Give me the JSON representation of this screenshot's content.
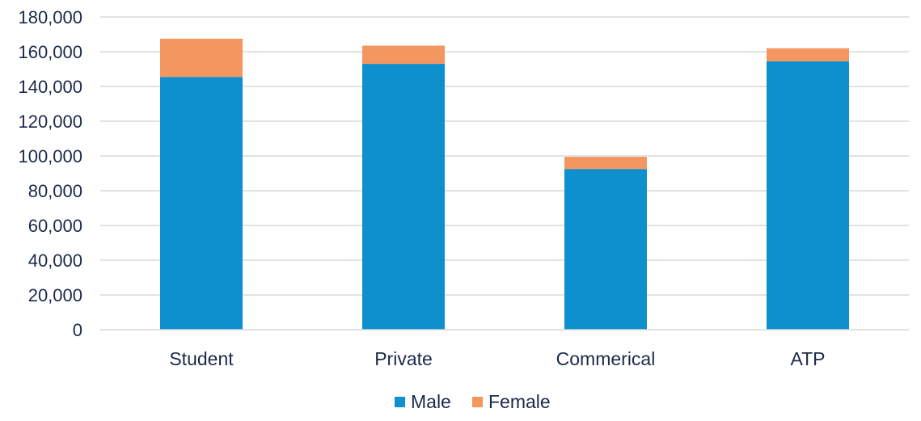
{
  "chart_data": {
    "type": "bar",
    "stacked": true,
    "categories": [
      "Student",
      "Private",
      "Commerical",
      "ATP"
    ],
    "series": [
      {
        "name": "Male",
        "color": "#0e8fce",
        "values": [
          145500,
          153000,
          92500,
          154500
        ]
      },
      {
        "name": "Female",
        "color": "#f4965f",
        "values": [
          22000,
          10500,
          7000,
          7500
        ]
      }
    ],
    "ylim": [
      0,
      180000
    ],
    "yticks": [
      0,
      20000,
      40000,
      60000,
      80000,
      100000,
      120000,
      140000,
      160000,
      180000
    ],
    "ytick_labels": [
      "0",
      "20,000",
      "40,000",
      "60,000",
      "80,000",
      "100,000",
      "120,000",
      "140,000",
      "160,000",
      "180,000"
    ],
    "grid": true,
    "legend_position": "bottom"
  }
}
